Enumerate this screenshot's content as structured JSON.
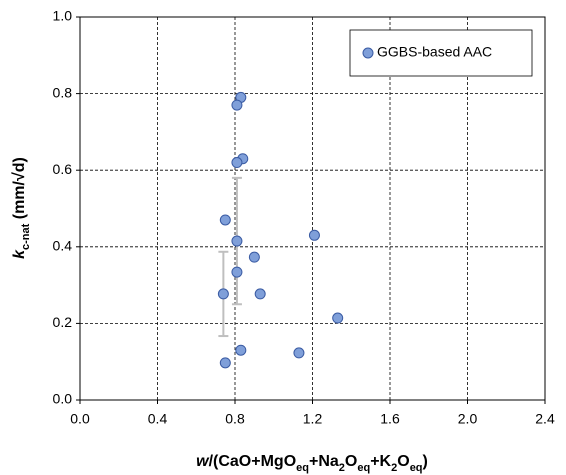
{
  "chart_data": {
    "type": "scatter",
    "xlabel": [
      {
        "text": "w",
        "italic": true
      },
      {
        "text": "/(CaO+MgO"
      },
      {
        "text": "eq",
        "sub": true
      },
      {
        "text": "+Na"
      },
      {
        "text": "2",
        "sub": true
      },
      {
        "text": "O"
      },
      {
        "text": "eq",
        "sub": true
      },
      {
        "text": "+K"
      },
      {
        "text": "2",
        "sub": true
      },
      {
        "text": "O"
      },
      {
        "text": "eq",
        "sub": true
      },
      {
        "text": ")"
      }
    ],
    "ylabel": [
      {
        "text": "k",
        "italic": true
      },
      {
        "text": "c-nat",
        "sub": true
      },
      {
        "text": " (mm/√d)"
      }
    ],
    "xlim": [
      0,
      2.4
    ],
    "ylim": [
      0,
      1
    ],
    "xticks": [
      {
        "value": 0,
        "label": "0.0"
      },
      0.4,
      0.8,
      1.2,
      1.6,
      {
        "value": 2,
        "label": "2.0"
      },
      2.4
    ],
    "yticks": [
      {
        "value": 0,
        "label": "0.0"
      },
      0.2,
      0.4,
      0.6,
      0.8,
      {
        "value": 1,
        "label": "1.0"
      }
    ],
    "grid": true,
    "legend": "upper right",
    "series": [
      {
        "name": "GGBS-based AAC",
        "color": "#7f9fd9",
        "edge_color": "#3a5ba3",
        "error_color": "#bfbfbf",
        "x": [
          0.83,
          0.81,
          0.84,
          0.81,
          0.75,
          0.81,
          1.21,
          0.9,
          0.81,
          0.74,
          0.93,
          1.33,
          0.83,
          1.13,
          0.75
        ],
        "values": [
          0.79,
          0.77,
          0.63,
          0.62,
          0.47,
          0.415,
          0.43,
          0.373,
          0.334,
          0.277,
          0.277,
          0.214,
          0.13,
          0.123,
          0.097
        ],
        "errors": [
          null,
          null,
          null,
          null,
          null,
          0.165,
          null,
          null,
          null,
          0.11,
          null,
          null,
          null,
          null,
          null
        ]
      }
    ]
  }
}
